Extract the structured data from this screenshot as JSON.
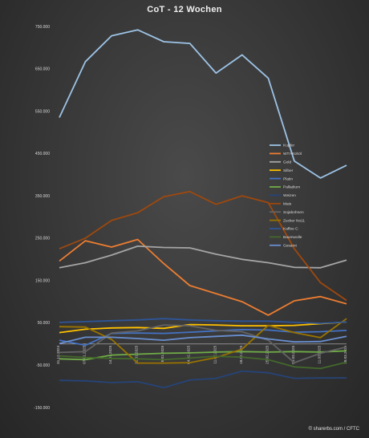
{
  "title": "CoT - 12 Wochen",
  "credit": "© sharerbs.com / CFTC",
  "chart_data": {
    "type": "line",
    "title": "CoT - 12 Wochen",
    "x": [
      "31.12.2024",
      "07.01.2025",
      "14.01.2025",
      "21.01.2025",
      "28.01.2025",
      "04.02.2025",
      "11.02.2025",
      "18.02.2025",
      "25.02.2025",
      "04.03.2025",
      "11.03.2025",
      "18.03.2025"
    ],
    "y_ticks": [
      -150000,
      -50000,
      50000,
      150000,
      250000,
      350000,
      450000,
      550000,
      650000,
      750000
    ],
    "y_tick_labels": [
      "-150.000",
      "-50.000",
      "50.000",
      "150.000",
      "250.000",
      "350.000",
      "450.000",
      "550.000",
      "650.000",
      "750.000"
    ],
    "ylim": [
      -150000,
      750000
    ],
    "grid": false,
    "legend_position": "right-center",
    "series": [
      {
        "name": "Kupfer",
        "color": "#9dc3e6",
        "values": [
          535000,
          667000,
          728000,
          742000,
          714000,
          710000,
          640000,
          683000,
          628000,
          432000,
          392000,
          422000
        ]
      },
      {
        "name": "WTI-Rohöl",
        "color": "#ed7d31",
        "values": [
          196000,
          244000,
          229000,
          247000,
          190000,
          138000,
          119000,
          100000,
          68000,
          102000,
          112000,
          95000
        ]
      },
      {
        "name": "Gold",
        "color": "#a5a5a5",
        "values": [
          180000,
          192000,
          210000,
          231000,
          228000,
          227000,
          212000,
          200000,
          192000,
          181000,
          180000,
          198000
        ]
      },
      {
        "name": "Silber",
        "color": "#ffc000",
        "values": [
          27000,
          35000,
          38000,
          39000,
          37000,
          46000,
          45000,
          43000,
          43000,
          44000,
          48000,
          52000
        ]
      },
      {
        "name": "Platin",
        "color": "#4472c4",
        "values": [
          9000,
          -3000,
          25000,
          26000,
          25000,
          28000,
          31000,
          34000,
          33000,
          28000,
          29000,
          32000
        ]
      },
      {
        "name": "Palladium",
        "color": "#70ad47",
        "values": [
          -35000,
          -37000,
          -26000,
          -24000,
          -22000,
          -21000,
          -19000,
          -18000,
          -19000,
          -18000,
          -19000,
          -16000
        ]
      },
      {
        "name": "Weizen",
        "color": "#264478",
        "values": [
          -86000,
          -87000,
          -91000,
          -89000,
          -103000,
          -85000,
          -81000,
          -64000,
          -68000,
          -81000,
          -80000,
          -80000
        ]
      },
      {
        "name": "Mais",
        "color": "#9e480e",
        "values": [
          225000,
          250000,
          292000,
          310000,
          348000,
          360000,
          330000,
          350000,
          334000,
          225000,
          145000,
          103000
        ]
      },
      {
        "name": "Sojabohnen",
        "color": "#636363",
        "values": [
          -20000,
          -18000,
          26000,
          31000,
          45000,
          43000,
          32000,
          29000,
          9000,
          -44000,
          -22000,
          -7000
        ]
      },
      {
        "name": "Zucker No11",
        "color": "#997300",
        "values": [
          41000,
          40000,
          11000,
          -45000,
          -45000,
          -44000,
          -32000,
          -12000,
          44000,
          27000,
          15000,
          60000
        ]
      },
      {
        "name": "Kaffee C",
        "color": "#2e5597",
        "values": [
          51000,
          53000,
          55000,
          57000,
          60000,
          57000,
          55000,
          54000,
          54000,
          51000,
          49000,
          52000
        ]
      },
      {
        "name": "Baumwolle",
        "color": "#43682b",
        "values": [
          -28000,
          -32000,
          -34000,
          -35000,
          -37000,
          -33000,
          -29000,
          -31000,
          -37000,
          -54000,
          -58000,
          -43000
        ]
      },
      {
        "name": "Gesamt",
        "color": "#698ed0",
        "values": [
          1000,
          16000,
          16000,
          13000,
          9000,
          15000,
          18000,
          21000,
          12000,
          5000,
          6000,
          18000
        ]
      }
    ]
  }
}
